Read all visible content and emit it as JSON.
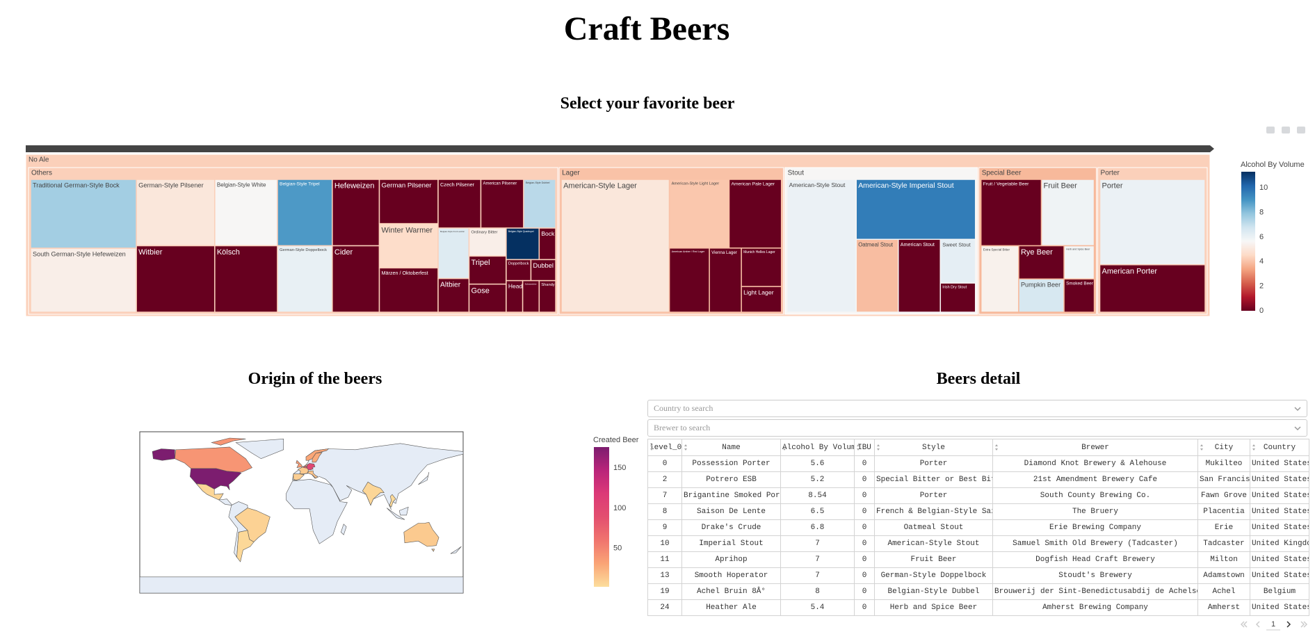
{
  "header": {
    "title": "Craft Beers"
  },
  "chart_data": [
    {
      "type": "treemap",
      "title": "Select your favorite beer",
      "colorscale": [
        "rgb(103,0,31)",
        "rgb(178,24,43)",
        "rgb(214,96,77)",
        "rgb(244,165,130)",
        "rgb(253,219,199)",
        "rgb(247,247,247)",
        "rgb(209,229,240)",
        "rgb(146,197,222)",
        "rgb(67,147,195)",
        "rgb(33,102,172)",
        "rgb(5,48,97)"
      ],
      "colorbar": {
        "title": "Alcohol By Volume",
        "range": [
          0,
          11.3
        ],
        "ticks": [
          0,
          2,
          4,
          6,
          8,
          10
        ]
      },
      "root": {
        "label": "No Ale",
        "color_value": 4.3,
        "children": [
          {
            "label": "Others",
            "color_value": 4.3,
            "children": [
              {
                "label": "Traditional German-Style Bock",
                "value": 14,
                "color_value": 7.6
              },
              {
                "label": "South German-Style Hefeweizen",
                "value": 13,
                "color_value": 5.3
              },
              {
                "label": "German-Style Pilsener",
                "value": 10,
                "color_value": 5.0
              },
              {
                "label": "Witbier",
                "value": 10,
                "color_value": 0
              },
              {
                "label": "Belgian-Style White",
                "value": 8,
                "color_value": 5.6
              },
              {
                "label": "Kölsch",
                "value": 8,
                "color_value": 0
              },
              {
                "label": "Belgian-Style Tripel",
                "value": 7,
                "color_value": 8.9
              },
              {
                "label": "German-Style Doppelbock",
                "value": 7,
                "color_value": 6.1
              },
              {
                "label": "Hefeweizen",
                "value": 6,
                "color_value": 0
              },
              {
                "label": "Cider",
                "value": 6,
                "color_value": 0
              },
              {
                "label": "German Pilsener",
                "value": 5,
                "color_value": 0
              },
              {
                "label": "Winter Warmer",
                "value": 5,
                "color_value": 4.6
              },
              {
                "label": "Märzen / Oktoberfest",
                "value": 5,
                "color_value": 0
              },
              {
                "label": "Czech Pilsener",
                "value": 4,
                "color_value": 0
              },
              {
                "label": "American Pilsener",
                "value": 4,
                "color_value": 0
              },
              {
                "label": "Belgian-Style Dubbel",
                "value": 3,
                "color_value": 7.2
              },
              {
                "label": "Belgian-Style Fruit Lambic",
                "value": 3,
                "color_value": 6.4
              },
              {
                "label": "Altbier",
                "value": 2,
                "color_value": 0
              },
              {
                "label": "Ordinary Bitter",
                "value": 2,
                "color_value": 5.3
              },
              {
                "label": "Tripel",
                "value": 2,
                "color_value": 0
              },
              {
                "label": "Gose",
                "value": 2,
                "color_value": 0
              },
              {
                "label": "Belgian-Style Quadrupel",
                "value": 2,
                "color_value": 11.3
              },
              {
                "label": "Bock",
                "value": 1,
                "color_value": 0
              },
              {
                "label": "Doppelbock",
                "value": 1,
                "color_value": 0
              },
              {
                "label": "Dubbel",
                "value": 1,
                "color_value": 0
              },
              {
                "label": "Head",
                "value": 1,
                "color_value": 0
              },
              {
                "label": "Schwarzbier",
                "value": 1,
                "color_value": 0
              },
              {
                "label": "Shandy",
                "value": 1,
                "color_value": 0
              }
            ]
          },
          {
            "label": "Lager",
            "color_value": 4.0,
            "children": [
              {
                "label": "American-Style Lager",
                "value": 28,
                "color_value": 5.0
              },
              {
                "label": "American-Style Light Lager",
                "value": 8,
                "color_value": 4.1
              },
              {
                "label": "American Pale Lager",
                "value": 7,
                "color_value": 0
              },
              {
                "label": "American Amber / Red Lager",
                "value": 5,
                "color_value": 0
              },
              {
                "label": "Vienna Lager",
                "value": 4,
                "color_value": 0
              },
              {
                "label": "Munich Helles Lager",
                "value": 3,
                "color_value": 0
              },
              {
                "label": "Light Lager",
                "value": 2,
                "color_value": 0
              }
            ]
          },
          {
            "label": "Stout",
            "color_value": 5.6,
            "children": [
              {
                "label": "American-Style Stout",
                "value": 18,
                "color_value": 6.0
              },
              {
                "label": "American-Style Imperial Stout",
                "value": 14,
                "color_value": 9.6
              },
              {
                "label": "Oatmeal Stout",
                "value": 6,
                "color_value": 3.9
              },
              {
                "label": "American Stout",
                "value": 6,
                "color_value": 0
              },
              {
                "label": "Sweet Stout",
                "value": 3,
                "color_value": 6.2
              },
              {
                "label": "Irish Dry Stout",
                "value": 2,
                "color_value": 0
              }
            ]
          },
          {
            "label": "Special Beer",
            "color_value": 3.8,
            "children": [
              {
                "label": "Fruit / Vegetable Beer",
                "value": 8,
                "color_value": 0
              },
              {
                "label": "Fruit Beer",
                "value": 7,
                "color_value": 5.9
              },
              {
                "label": "Extra Special Bitter",
                "value": 5,
                "color_value": 5.4
              },
              {
                "label": "Rye Beer",
                "value": 3,
                "color_value": 0
              },
              {
                "label": "Pumpkin Beer",
                "value": 3,
                "color_value": 6.6
              },
              {
                "label": "Herb and Spice Beer",
                "value": 2,
                "color_value": 5.8
              },
              {
                "label": "Smoked Beer",
                "value": 2,
                "color_value": 0
              }
            ]
          },
          {
            "label": "Porter",
            "color_value": 4.3,
            "children": [
              {
                "label": "Porter",
                "value": 18,
                "color_value": 6.0
              },
              {
                "label": "American Porter",
                "value": 10,
                "color_value": 0
              }
            ]
          }
        ]
      }
    },
    {
      "type": "choropleth",
      "title": "Origin of the beers",
      "colorscale": [
        "rgb(252,222,156)",
        "rgb(250,164,118)",
        "rgb(240,116,110)",
        "rgb(227,79,111)",
        "rgb(220,57,119)",
        "rgb(185,37,122)",
        "rgb(124,29,111)"
      ],
      "colorbar": {
        "title": "Created Beer",
        "range": [
          2,
          176
        ],
        "ticks": [
          50,
          100,
          150
        ]
      },
      "values": [
        176,
        40,
        6,
        8,
        5,
        35,
        12,
        10,
        70,
        22,
        100,
        15,
        30,
        28,
        6,
        4,
        12
      ]
    }
  ],
  "table": {
    "title": "Beers detail",
    "filters": [
      "Country to search",
      "Brewer to search"
    ],
    "columns": [
      "level_0",
      "Name",
      "Alcohol By Volume",
      "IBU",
      "Style",
      "Brewer",
      "City",
      "Country"
    ],
    "rows": [
      [
        0,
        "Possession Porter",
        5.6,
        0,
        "Porter",
        "Diamond Knot Brewery & Alehouse",
        "Mukilteo",
        "United States"
      ],
      [
        2,
        "Potrero ESB",
        5.2,
        0,
        "Special Bitter or Best Bitter",
        "21st Amendment Brewery Cafe",
        "San Francisco",
        "United States"
      ],
      [
        7,
        "Brigantine Smoked Porter",
        8.54,
        0,
        "Porter",
        "South County Brewing Co.",
        "Fawn Grove",
        "United States"
      ],
      [
        8,
        "Saison De Lente",
        6.5,
        0,
        "French & Belgian-Style Saison",
        "The Bruery",
        "Placentia",
        "United States"
      ],
      [
        9,
        "Drake's Crude",
        6.8,
        0,
        "Oatmeal Stout",
        "Erie Brewing Company",
        "Erie",
        "United States"
      ],
      [
        10,
        "Imperial Stout",
        7,
        0,
        "American-Style Stout",
        "Samuel Smith Old Brewery (Tadcaster)",
        "Tadcaster",
        "United Kingdom"
      ],
      [
        11,
        "Aprihop",
        7,
        0,
        "Fruit Beer",
        "Dogfish Head Craft Brewery",
        "Milton",
        "United States"
      ],
      [
        13,
        "Smooth Hoperator",
        7,
        0,
        "German-Style Doppelbock",
        "Stoudt's Brewery",
        "Adamstown",
        "United States"
      ],
      [
        19,
        "Achel Bruin 8Â°",
        8,
        0,
        "Belgian-Style Dubbel",
        "Brouwerij der Sint-Benedictusabdij de Achelse Kluis",
        "Achel",
        "Belgium"
      ],
      [
        24,
        "Heather Ale",
        5.4,
        0,
        "Herb and Spice Beer",
        "Amherst Brewing Company",
        "Amherst",
        "United States"
      ]
    ],
    "page": 1
  }
}
